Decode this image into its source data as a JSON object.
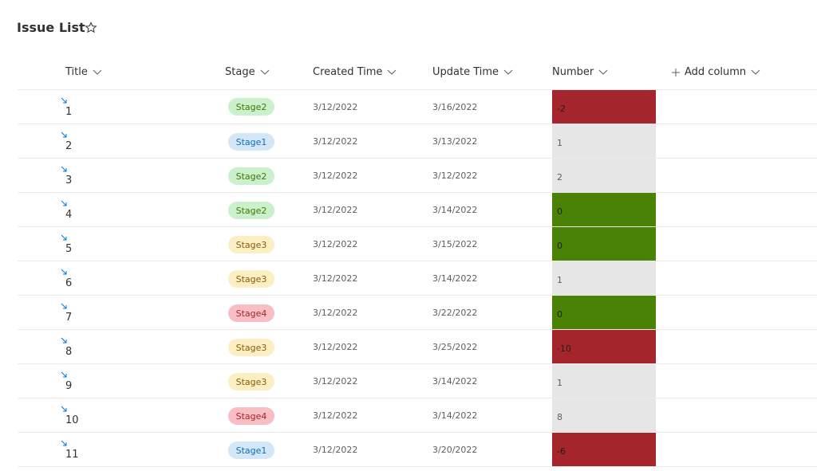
{
  "header": {
    "title": "Issue List"
  },
  "table": {
    "columns": [
      "Title",
      "Stage",
      "Created Time",
      "Update Time",
      "Number"
    ],
    "add_column": "Add column",
    "rows": [
      [
        "1",
        "Stage2",
        "3/12/2022",
        "3/16/2022",
        -2
      ],
      [
        "2",
        "Stage1",
        "3/12/2022",
        "3/13/2022",
        1
      ],
      [
        "3",
        "Stage2",
        "3/12/2022",
        "3/12/2022",
        2
      ],
      [
        "4",
        "Stage2",
        "3/12/2022",
        "3/14/2022",
        0
      ],
      [
        "5",
        "Stage3",
        "3/12/2022",
        "3/15/2022",
        0
      ],
      [
        "6",
        "Stage3",
        "3/12/2022",
        "3/14/2022",
        1
      ],
      [
        "7",
        "Stage4",
        "3/12/2022",
        "3/22/2022",
        0
      ],
      [
        "8",
        "Stage3",
        "3/12/2022",
        "3/25/2022",
        -10
      ],
      [
        "9",
        "Stage3",
        "3/12/2022",
        "3/14/2022",
        1
      ],
      [
        "10",
        "Stage4",
        "3/12/2022",
        "3/14/2022",
        8
      ],
      [
        "11",
        "Stage1",
        "3/12/2022",
        "3/20/2022",
        -6
      ]
    ]
  }
}
